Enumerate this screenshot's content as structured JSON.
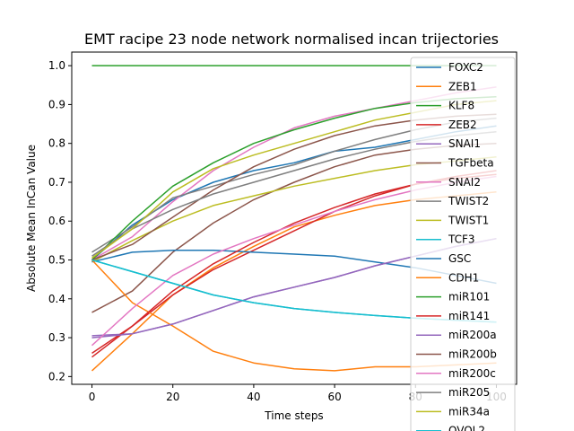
{
  "chart_data": {
    "type": "line",
    "title": "EMT racipe 23 node network normalised incan trijectories",
    "xlabel": "Time steps",
    "ylabel": "Absolute Mean InCan Value",
    "xlim": [
      -5,
      105
    ],
    "ylim": [
      0.18,
      1.035
    ],
    "xticks": [
      0,
      20,
      40,
      60,
      80,
      100
    ],
    "yticks": [
      0.2,
      0.3,
      0.4,
      0.5,
      0.6,
      0.7,
      0.8,
      0.9,
      1.0
    ],
    "grid": false,
    "legend_position": "right, overflowing bottom edge",
    "series": [
      {
        "name": "FOXC2",
        "color": "#1f77b4",
        "x": [
          0,
          10,
          20,
          30,
          40,
          50,
          60,
          70,
          80,
          90,
          100
        ],
        "y": [
          0.5,
          0.59,
          0.655,
          0.7,
          0.73,
          0.75,
          0.78,
          0.79,
          0.81,
          0.83,
          0.845
        ]
      },
      {
        "name": "ZEB1",
        "color": "#ff7f0e",
        "x": [
          0,
          10,
          20,
          30,
          40,
          50,
          60,
          70,
          80,
          90,
          100
        ],
        "y": [
          0.215,
          0.31,
          0.41,
          0.48,
          0.535,
          0.585,
          0.615,
          0.64,
          0.655,
          0.665,
          0.675
        ]
      },
      {
        "name": "KLF8",
        "color": "#2ca02c",
        "x": [
          0,
          100
        ],
        "y": [
          1.0,
          1.0
        ]
      },
      {
        "name": "ZEB2",
        "color": "#d62728",
        "x": [
          0,
          10,
          20,
          30,
          40,
          50,
          60,
          70,
          80,
          90,
          100
        ],
        "y": [
          0.25,
          0.33,
          0.41,
          0.475,
          0.525,
          0.575,
          0.625,
          0.665,
          0.695,
          0.715,
          0.73
        ]
      },
      {
        "name": "SNAI1",
        "color": "#9467bd",
        "x": [
          0,
          10,
          20,
          30,
          40,
          50,
          60,
          70,
          80,
          90,
          100
        ],
        "y": [
          0.305,
          0.31,
          0.335,
          0.37,
          0.405,
          0.43,
          0.455,
          0.485,
          0.51,
          0.535,
          0.555
        ]
      },
      {
        "name": "TGFbeta",
        "color": "#8c564b",
        "x": [
          0,
          10,
          20,
          30,
          40,
          50,
          60,
          70,
          80,
          90,
          100
        ],
        "y": [
          0.365,
          0.42,
          0.52,
          0.595,
          0.655,
          0.7,
          0.74,
          0.77,
          0.785,
          0.795,
          0.8
        ]
      },
      {
        "name": "SNAI2",
        "color": "#e377c2",
        "x": [
          0,
          10,
          20,
          30,
          40,
          50,
          60,
          70,
          80,
          90,
          100
        ],
        "y": [
          0.5,
          0.56,
          0.65,
          0.73,
          0.79,
          0.84,
          0.87,
          0.89,
          0.91,
          0.93,
          0.945
        ]
      },
      {
        "name": "TWIST2",
        "color": "#7f7f7f",
        "x": [
          0,
          10,
          20,
          30,
          40,
          50,
          60,
          70,
          80,
          90,
          100
        ],
        "y": [
          0.52,
          0.585,
          0.66,
          0.69,
          0.72,
          0.745,
          0.78,
          0.81,
          0.835,
          0.855,
          0.865
        ]
      },
      {
        "name": "TWIST1",
        "color": "#bcbd22",
        "x": [
          0,
          10,
          20,
          30,
          40,
          50,
          60,
          70,
          80,
          90,
          100
        ],
        "y": [
          0.495,
          0.55,
          0.6,
          0.64,
          0.665,
          0.69,
          0.71,
          0.73,
          0.745,
          0.755,
          0.765
        ]
      },
      {
        "name": "TCF3",
        "color": "#17becf",
        "x": [
          0,
          10,
          20,
          30,
          40,
          50,
          60,
          70,
          80,
          90,
          100
        ],
        "y": [
          0.5,
          0.47,
          0.44,
          0.41,
          0.39,
          0.375,
          0.365,
          0.357,
          0.35,
          0.345,
          0.34
        ]
      },
      {
        "name": "GSC",
        "color": "#1f77b4",
        "x": [
          0,
          10,
          20,
          30,
          40,
          50,
          60,
          70,
          80,
          90,
          100
        ],
        "y": [
          0.495,
          0.52,
          0.525,
          0.525,
          0.52,
          0.515,
          0.51,
          0.495,
          0.48,
          0.46,
          0.44
        ]
      },
      {
        "name": "CDH1",
        "color": "#ff7f0e",
        "x": [
          0,
          10,
          20,
          30,
          40,
          50,
          60,
          70,
          80,
          90,
          100
        ],
        "y": [
          0.5,
          0.39,
          0.33,
          0.265,
          0.235,
          0.22,
          0.215,
          0.225,
          0.225,
          0.23,
          0.235
        ]
      },
      {
        "name": "miR101",
        "color": "#2ca02c",
        "x": [
          0,
          10,
          20,
          30,
          40,
          50,
          60,
          70,
          80,
          90,
          100
        ],
        "y": [
          0.5,
          0.6,
          0.69,
          0.75,
          0.8,
          0.835,
          0.865,
          0.89,
          0.905,
          0.915,
          0.92
        ]
      },
      {
        "name": "miR141",
        "color": "#d62728",
        "x": [
          0,
          10,
          20,
          30,
          40,
          50,
          60,
          70,
          80,
          90,
          100
        ],
        "y": [
          0.26,
          0.33,
          0.42,
          0.49,
          0.545,
          0.595,
          0.635,
          0.67,
          0.695,
          0.71,
          0.72
        ]
      },
      {
        "name": "miR200a",
        "color": "#9467bd",
        "x": [
          0,
          10,
          20,
          30,
          40,
          50,
          60,
          70,
          80,
          90,
          100
        ],
        "y": [
          0.3,
          0.31,
          0.335,
          0.37,
          0.405,
          0.43,
          0.455,
          0.485,
          0.51,
          0.535,
          0.555
        ]
      },
      {
        "name": "miR200b",
        "color": "#8c564b",
        "x": [
          0,
          10,
          20,
          30,
          40,
          50,
          60,
          70,
          80,
          90,
          100
        ],
        "y": [
          0.5,
          0.54,
          0.61,
          0.68,
          0.74,
          0.785,
          0.82,
          0.845,
          0.86,
          0.87,
          0.875
        ]
      },
      {
        "name": "miR200c",
        "color": "#e377c2",
        "x": [
          0,
          10,
          20,
          30,
          40,
          50,
          60,
          70,
          80,
          90,
          100
        ],
        "y": [
          0.28,
          0.375,
          0.46,
          0.515,
          0.555,
          0.59,
          0.625,
          0.655,
          0.68,
          0.7,
          0.715
        ]
      },
      {
        "name": "miR205",
        "color": "#7f7f7f",
        "x": [
          0,
          10,
          20,
          30,
          40,
          50,
          60,
          70,
          80,
          90,
          100
        ],
        "y": [
          0.51,
          0.58,
          0.63,
          0.67,
          0.7,
          0.73,
          0.76,
          0.785,
          0.805,
          0.82,
          0.83
        ]
      },
      {
        "name": "miR34a",
        "color": "#bcbd22",
        "x": [
          0,
          10,
          20,
          30,
          40,
          50,
          60,
          70,
          80,
          90,
          100
        ],
        "y": [
          0.505,
          0.58,
          0.675,
          0.735,
          0.77,
          0.8,
          0.83,
          0.86,
          0.88,
          0.9,
          0.91
        ]
      },
      {
        "name": "OVOL2",
        "color": "#17becf",
        "x": [
          0,
          10,
          20,
          30,
          40,
          50,
          60,
          70,
          80,
          90,
          100
        ],
        "y": [
          0.5,
          0.47,
          0.44,
          0.41,
          0.39,
          0.375,
          0.365,
          0.357,
          0.35,
          0.345,
          0.34
        ]
      }
    ]
  }
}
